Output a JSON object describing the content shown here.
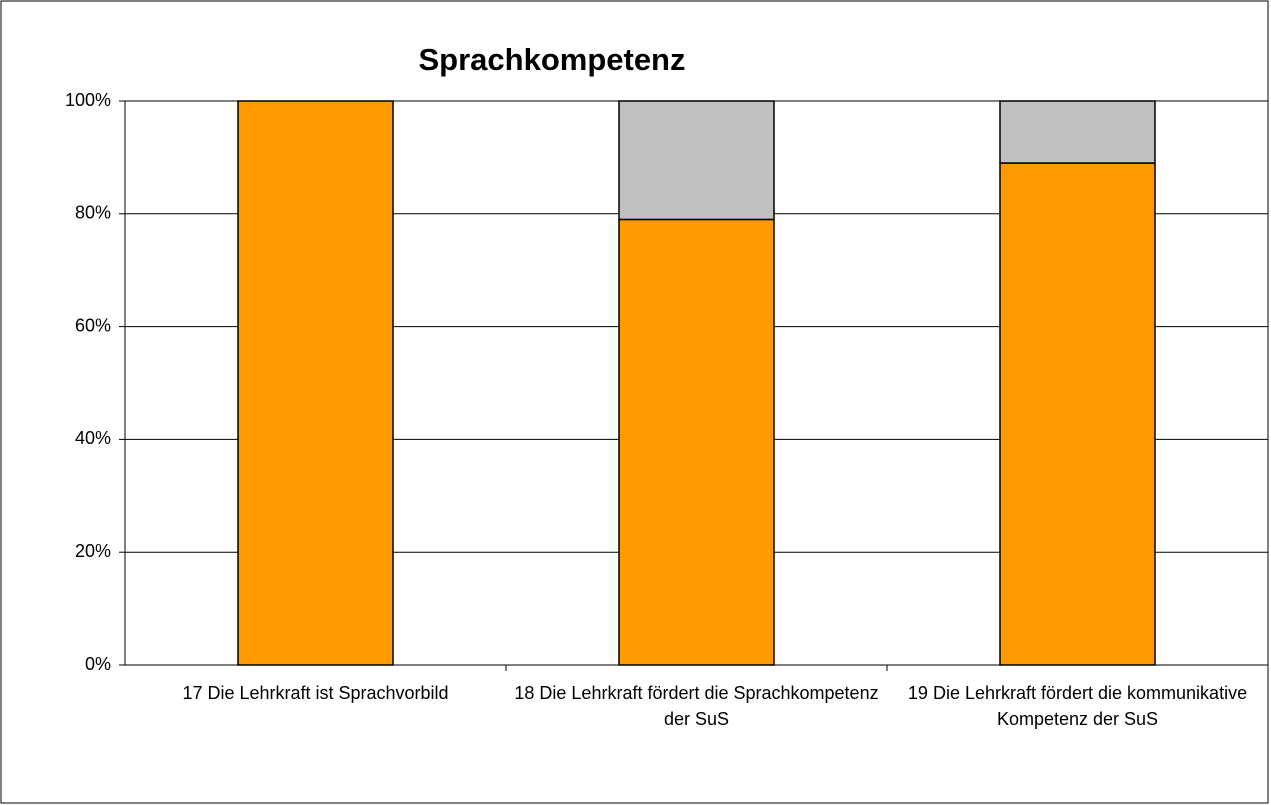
{
  "chart_data": {
    "type": "stacked_bar",
    "title": "Sprachkompetenz",
    "categories": [
      "17 Die Lehrkraft ist Sprachvorbild",
      "18 Die Lehrkraft fördert die Sprachkompetenz der SuS",
      "19 Die Lehrkraft fördert die kommunikative Kompetenz der SuS"
    ],
    "series": [
      {
        "color": "#ff9900",
        "values": [
          100,
          79,
          89
        ]
      },
      {
        "color": "#c0c0c0",
        "values": [
          0,
          21,
          11
        ]
      }
    ],
    "ylim": [
      0,
      100
    ],
    "yticks": [
      {
        "value": 0,
        "label": "0%"
      },
      {
        "value": 20,
        "label": "20%"
      },
      {
        "value": 40,
        "label": "40%"
      },
      {
        "value": 60,
        "label": "60%"
      },
      {
        "value": 80,
        "label": "80%"
      },
      {
        "value": 100,
        "label": "100%"
      }
    ],
    "grid": true
  }
}
